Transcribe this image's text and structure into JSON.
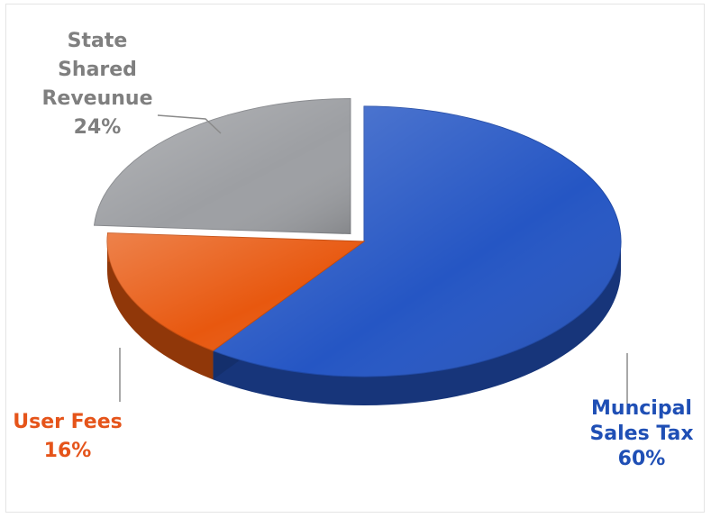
{
  "chart_data": {
    "type": "pie",
    "title": "",
    "slices": [
      {
        "name_lines": [
          "Muncipal",
          "Sales Tax"
        ],
        "pct_label": "60%",
        "value": 60,
        "color": "#2556c4",
        "label_color": "#1f4fb5"
      },
      {
        "name_lines": [
          "User Fees"
        ],
        "pct_label": "16%",
        "value": 16,
        "color": "#e8580f",
        "label_color": "#e5541a"
      },
      {
        "name_lines": [
          "State",
          "Shared",
          "Reveunue"
        ],
        "pct_label": "24%",
        "value": 24,
        "color": "#9d9fa3",
        "label_color": "#7f7f7f"
      }
    ]
  }
}
